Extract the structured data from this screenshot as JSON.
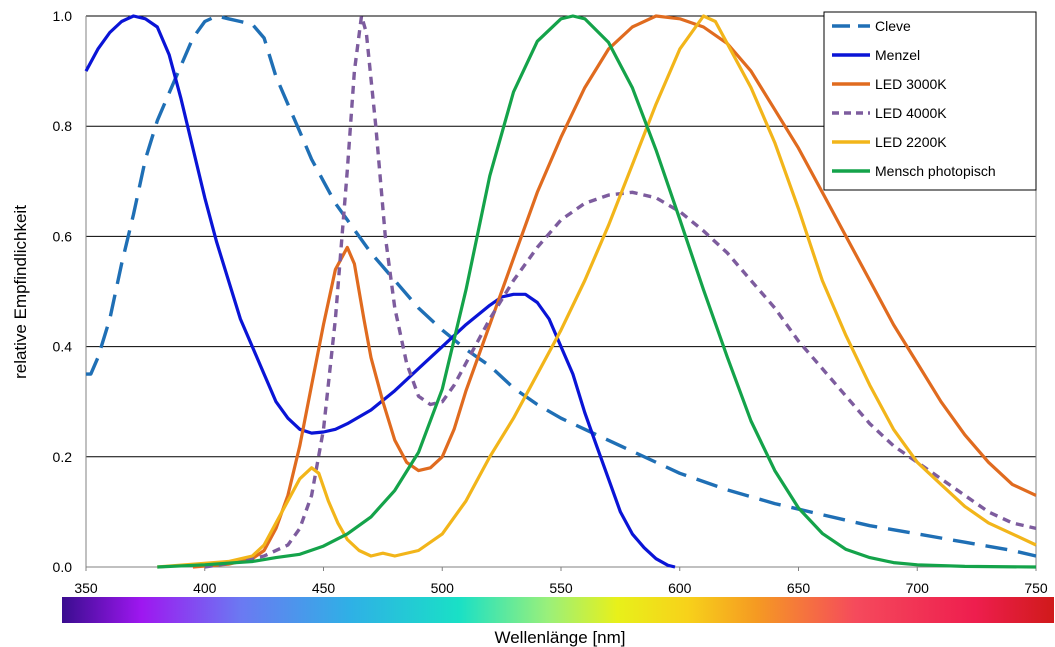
{
  "chart_data": {
    "type": "line",
    "xlabel": "Wellenlänge [nm]",
    "ylabel": "relative Empfindlichkeit",
    "xlim": [
      350,
      750
    ],
    "ylim": [
      0,
      1.0
    ],
    "x_ticks": [
      "350",
      "400",
      "450",
      "500",
      "550",
      "600",
      "650",
      "700",
      "750"
    ],
    "y_ticks": [
      "0.0",
      "0.2",
      "0.4",
      "0.6",
      "0.8",
      "1.0"
    ],
    "grid": "horizontal",
    "legend_position": "top-right",
    "spectrum_bar": true,
    "series": [
      {
        "name": "Cleve",
        "color": "#1f6fb5",
        "dash": "long-dash",
        "points": [
          [
            350,
            0.35
          ],
          [
            352,
            0.35
          ],
          [
            355,
            0.38
          ],
          [
            360,
            0.45
          ],
          [
            365,
            0.55
          ],
          [
            370,
            0.64
          ],
          [
            375,
            0.74
          ],
          [
            380,
            0.81
          ],
          [
            385,
            0.86
          ],
          [
            390,
            0.91
          ],
          [
            395,
            0.96
          ],
          [
            400,
            0.99
          ],
          [
            405,
            1.0
          ],
          [
            410,
            0.995
          ],
          [
            415,
            0.99
          ],
          [
            420,
            0.985
          ],
          [
            425,
            0.96
          ],
          [
            430,
            0.89
          ],
          [
            435,
            0.84
          ],
          [
            440,
            0.79
          ],
          [
            445,
            0.74
          ],
          [
            450,
            0.7
          ],
          [
            455,
            0.66
          ],
          [
            460,
            0.63
          ],
          [
            465,
            0.6
          ],
          [
            470,
            0.57
          ],
          [
            480,
            0.52
          ],
          [
            490,
            0.47
          ],
          [
            500,
            0.43
          ],
          [
            510,
            0.395
          ],
          [
            520,
            0.365
          ],
          [
            530,
            0.325
          ],
          [
            540,
            0.295
          ],
          [
            550,
            0.27
          ],
          [
            560,
            0.25
          ],
          [
            570,
            0.23
          ],
          [
            580,
            0.21
          ],
          [
            600,
            0.17
          ],
          [
            620,
            0.14
          ],
          [
            640,
            0.115
          ],
          [
            660,
            0.095
          ],
          [
            680,
            0.075
          ],
          [
            700,
            0.06
          ],
          [
            720,
            0.045
          ],
          [
            740,
            0.03
          ],
          [
            750,
            0.02
          ]
        ]
      },
      {
        "name": "Menzel",
        "color": "#0a14d6",
        "dash": "solid",
        "points": [
          [
            350,
            0.9
          ],
          [
            355,
            0.94
          ],
          [
            360,
            0.97
          ],
          [
            365,
            0.99
          ],
          [
            370,
            1.0
          ],
          [
            375,
            0.995
          ],
          [
            380,
            0.98
          ],
          [
            385,
            0.93
          ],
          [
            390,
            0.85
          ],
          [
            395,
            0.76
          ],
          [
            400,
            0.67
          ],
          [
            405,
            0.59
          ],
          [
            410,
            0.52
          ],
          [
            415,
            0.45
          ],
          [
            420,
            0.4
          ],
          [
            425,
            0.35
          ],
          [
            430,
            0.3
          ],
          [
            435,
            0.27
          ],
          [
            440,
            0.25
          ],
          [
            445,
            0.243
          ],
          [
            450,
            0.245
          ],
          [
            455,
            0.25
          ],
          [
            460,
            0.26
          ],
          [
            470,
            0.285
          ],
          [
            480,
            0.32
          ],
          [
            490,
            0.36
          ],
          [
            500,
            0.4
          ],
          [
            510,
            0.44
          ],
          [
            520,
            0.475
          ],
          [
            525,
            0.49
          ],
          [
            530,
            0.495
          ],
          [
            535,
            0.495
          ],
          [
            540,
            0.48
          ],
          [
            545,
            0.45
          ],
          [
            550,
            0.4
          ],
          [
            555,
            0.35
          ],
          [
            560,
            0.28
          ],
          [
            565,
            0.22
          ],
          [
            570,
            0.16
          ],
          [
            575,
            0.1
          ],
          [
            580,
            0.06
          ],
          [
            585,
            0.035
          ],
          [
            590,
            0.015
          ],
          [
            595,
            0.003
          ],
          [
            598,
            0.0
          ]
        ]
      },
      {
        "name": "LED 3000K",
        "color": "#e06b1f",
        "dash": "solid",
        "points": [
          [
            395,
            0.0
          ],
          [
            410,
            0.005
          ],
          [
            420,
            0.015
          ],
          [
            425,
            0.03
          ],
          [
            430,
            0.07
          ],
          [
            435,
            0.13
          ],
          [
            440,
            0.22
          ],
          [
            445,
            0.33
          ],
          [
            450,
            0.44
          ],
          [
            455,
            0.54
          ],
          [
            460,
            0.58
          ],
          [
            463,
            0.55
          ],
          [
            467,
            0.45
          ],
          [
            470,
            0.38
          ],
          [
            475,
            0.3
          ],
          [
            480,
            0.23
          ],
          [
            485,
            0.19
          ],
          [
            490,
            0.175
          ],
          [
            495,
            0.18
          ],
          [
            500,
            0.2
          ],
          [
            505,
            0.25
          ],
          [
            510,
            0.32
          ],
          [
            520,
            0.44
          ],
          [
            530,
            0.56
          ],
          [
            540,
            0.68
          ],
          [
            550,
            0.78
          ],
          [
            560,
            0.87
          ],
          [
            570,
            0.94
          ],
          [
            580,
            0.98
          ],
          [
            590,
            1.0
          ],
          [
            600,
            0.995
          ],
          [
            610,
            0.98
          ],
          [
            620,
            0.95
          ],
          [
            630,
            0.9
          ],
          [
            640,
            0.83
          ],
          [
            650,
            0.76
          ],
          [
            660,
            0.68
          ],
          [
            670,
            0.6
          ],
          [
            680,
            0.52
          ],
          [
            690,
            0.44
          ],
          [
            700,
            0.37
          ],
          [
            710,
            0.3
          ],
          [
            720,
            0.24
          ],
          [
            730,
            0.19
          ],
          [
            740,
            0.15
          ],
          [
            750,
            0.13
          ]
        ]
      },
      {
        "name": "LED 4000K",
        "color": "#7d5c9e",
        "dash": "short-dash",
        "points": [
          [
            400,
            0.0
          ],
          [
            415,
            0.01
          ],
          [
            425,
            0.02
          ],
          [
            435,
            0.04
          ],
          [
            440,
            0.07
          ],
          [
            445,
            0.13
          ],
          [
            450,
            0.25
          ],
          [
            455,
            0.45
          ],
          [
            460,
            0.72
          ],
          [
            463,
            0.9
          ],
          [
            466,
            1.0
          ],
          [
            468,
            0.97
          ],
          [
            472,
            0.8
          ],
          [
            476,
            0.6
          ],
          [
            480,
            0.47
          ],
          [
            485,
            0.37
          ],
          [
            490,
            0.31
          ],
          [
            495,
            0.295
          ],
          [
            500,
            0.3
          ],
          [
            505,
            0.33
          ],
          [
            510,
            0.37
          ],
          [
            520,
            0.45
          ],
          [
            530,
            0.52
          ],
          [
            540,
            0.58
          ],
          [
            550,
            0.63
          ],
          [
            560,
            0.66
          ],
          [
            570,
            0.675
          ],
          [
            580,
            0.68
          ],
          [
            590,
            0.67
          ],
          [
            600,
            0.645
          ],
          [
            610,
            0.61
          ],
          [
            620,
            0.57
          ],
          [
            630,
            0.52
          ],
          [
            640,
            0.47
          ],
          [
            650,
            0.41
          ],
          [
            660,
            0.36
          ],
          [
            670,
            0.31
          ],
          [
            680,
            0.26
          ],
          [
            690,
            0.22
          ],
          [
            700,
            0.19
          ],
          [
            710,
            0.16
          ],
          [
            720,
            0.13
          ],
          [
            730,
            0.1
          ],
          [
            740,
            0.08
          ],
          [
            750,
            0.07
          ]
        ]
      },
      {
        "name": "LED 2200K",
        "color": "#f2b51a",
        "dash": "solid",
        "points": [
          [
            380,
            0.0
          ],
          [
            395,
            0.005
          ],
          [
            410,
            0.01
          ],
          [
            420,
            0.02
          ],
          [
            425,
            0.04
          ],
          [
            430,
            0.08
          ],
          [
            435,
            0.12
          ],
          [
            440,
            0.16
          ],
          [
            445,
            0.18
          ],
          [
            448,
            0.17
          ],
          [
            452,
            0.12
          ],
          [
            456,
            0.08
          ],
          [
            460,
            0.05
          ],
          [
            465,
            0.03
          ],
          [
            470,
            0.02
          ],
          [
            475,
            0.025
          ],
          [
            480,
            0.02
          ],
          [
            490,
            0.03
          ],
          [
            500,
            0.06
          ],
          [
            510,
            0.12
          ],
          [
            520,
            0.2
          ],
          [
            530,
            0.27
          ],
          [
            540,
            0.35
          ],
          [
            550,
            0.43
          ],
          [
            560,
            0.52
          ],
          [
            570,
            0.62
          ],
          [
            580,
            0.73
          ],
          [
            590,
            0.84
          ],
          [
            600,
            0.94
          ],
          [
            610,
            1.0
          ],
          [
            615,
            0.99
          ],
          [
            620,
            0.95
          ],
          [
            630,
            0.87
          ],
          [
            640,
            0.77
          ],
          [
            650,
            0.65
          ],
          [
            660,
            0.52
          ],
          [
            670,
            0.42
          ],
          [
            680,
            0.33
          ],
          [
            690,
            0.25
          ],
          [
            700,
            0.19
          ],
          [
            710,
            0.15
          ],
          [
            720,
            0.11
          ],
          [
            730,
            0.08
          ],
          [
            740,
            0.06
          ],
          [
            750,
            0.04
          ]
        ]
      },
      {
        "name": "Mensch photopisch",
        "color": "#14a34a",
        "dash": "solid",
        "points": [
          [
            380,
            0.0
          ],
          [
            400,
            0.004
          ],
          [
            420,
            0.01
          ],
          [
            430,
            0.017
          ],
          [
            440,
            0.023
          ],
          [
            450,
            0.038
          ],
          [
            460,
            0.06
          ],
          [
            470,
            0.091
          ],
          [
            480,
            0.139
          ],
          [
            490,
            0.208
          ],
          [
            500,
            0.323
          ],
          [
            510,
            0.503
          ],
          [
            520,
            0.71
          ],
          [
            530,
            0.862
          ],
          [
            540,
            0.954
          ],
          [
            550,
            0.995
          ],
          [
            555,
            1.0
          ],
          [
            560,
            0.995
          ],
          [
            570,
            0.952
          ],
          [
            580,
            0.87
          ],
          [
            590,
            0.757
          ],
          [
            600,
            0.631
          ],
          [
            610,
            0.503
          ],
          [
            620,
            0.381
          ],
          [
            630,
            0.265
          ],
          [
            640,
            0.175
          ],
          [
            650,
            0.107
          ],
          [
            660,
            0.061
          ],
          [
            670,
            0.032
          ],
          [
            680,
            0.017
          ],
          [
            690,
            0.008
          ],
          [
            700,
            0.004
          ],
          [
            720,
            0.001
          ],
          [
            750,
            0.0
          ]
        ]
      }
    ]
  }
}
